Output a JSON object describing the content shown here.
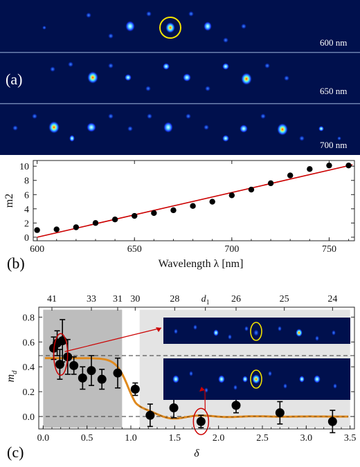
{
  "panel_a": {
    "label": "(a)",
    "stripes": [
      {
        "label": "600 nm"
      },
      {
        "label": "650 nm"
      },
      {
        "label": "700 nm"
      }
    ]
  },
  "chart_data": [
    {
      "panel_label": "(b)",
      "type": "scatter",
      "xlabel": "Wavelength λ [nm]",
      "ylabel": "m2",
      "xlim": [
        598,
        763
      ],
      "ylim": [
        -0.5,
        10.8
      ],
      "xticks": [
        600,
        650,
        700,
        750
      ],
      "yticks": [
        0,
        2,
        4,
        6,
        8,
        10
      ],
      "grid": false,
      "series": [
        {
          "x": [
            600,
            610,
            620,
            630,
            640,
            650,
            660,
            670,
            680,
            690,
            700,
            710,
            720,
            730,
            740,
            750,
            760
          ],
          "y": [
            1.0,
            1.1,
            1.4,
            2.0,
            2.5,
            3.0,
            3.4,
            3.8,
            4.4,
            5.0,
            5.9,
            6.7,
            7.6,
            8.7,
            9.6,
            10.1,
            10.1
          ]
        }
      ],
      "fit_line": {
        "x": [
          600,
          762
        ],
        "y": [
          0.0,
          10.2
        ],
        "color": "#cc0000"
      }
    },
    {
      "panel_label": "(c)",
      "type": "scatter",
      "xlabel": "δ",
      "ylabel": "m_d",
      "xlim": [
        -0.05,
        3.55
      ],
      "ylim": [
        -0.1,
        0.88
      ],
      "xticks": [
        0.0,
        0.5,
        1.0,
        1.5,
        2.0,
        2.5,
        3.0,
        3.5
      ],
      "yticks": [
        0.0,
        0.2,
        0.4,
        0.6,
        0.8
      ],
      "top_axis": {
        "ticks": [
          {
            "pos": 0.1,
            "label": "41"
          },
          {
            "pos": 0.55,
            "label": "33"
          },
          {
            "pos": 0.85,
            "label": "31"
          },
          {
            "pos": 1.05,
            "label": "30"
          },
          {
            "pos": 1.5,
            "label": "28"
          },
          {
            "pos": 1.85,
            "label": "d",
            "sub": "1"
          },
          {
            "pos": 2.2,
            "label": "26"
          },
          {
            "pos": 2.75,
            "label": "25"
          },
          {
            "pos": 3.3,
            "label": "24"
          }
        ]
      },
      "dashed_lines_y": [
        0.49,
        0.0
      ],
      "shaded_regions": [
        {
          "x": [
            0.0,
            0.9
          ],
          "y": [
            -0.09,
            0.86
          ],
          "color": "#bdbdbd"
        },
        {
          "x": [
            1.1,
            3.5
          ],
          "y": [
            -0.09,
            0.86
          ],
          "color": "#e4e4e4"
        }
      ],
      "series": [
        {
          "points": [
            {
              "x": 0.12,
              "y": 0.55,
              "err": 0.09
            },
            {
              "x": 0.16,
              "y": 0.59,
              "err": 0.1
            },
            {
              "x": 0.19,
              "y": 0.42,
              "err": 0.12
            },
            {
              "x": 0.22,
              "y": 0.61,
              "err": 0.17
            },
            {
              "x": 0.28,
              "y": 0.48,
              "err": 0.14
            },
            {
              "x": 0.35,
              "y": 0.41,
              "err": 0.07
            },
            {
              "x": 0.45,
              "y": 0.31,
              "err": 0.09
            },
            {
              "x": 0.55,
              "y": 0.37,
              "err": 0.12
            },
            {
              "x": 0.67,
              "y": 0.3,
              "err": 0.08
            },
            {
              "x": 0.85,
              "y": 0.35,
              "err": 0.12
            },
            {
              "x": 1.05,
              "y": 0.22,
              "err": 0.05
            },
            {
              "x": 1.22,
              "y": 0.01,
              "err": 0.09
            },
            {
              "x": 1.49,
              "y": 0.07,
              "err": 0.08
            },
            {
              "x": 1.8,
              "y": -0.04,
              "err": 0.05
            },
            {
              "x": 2.2,
              "y": 0.09,
              "err": 0.06
            },
            {
              "x": 2.7,
              "y": 0.03,
              "err": 0.09
            },
            {
              "x": 3.3,
              "y": -0.04,
              "err": 0.09
            }
          ]
        }
      ],
      "model_curve": {
        "color": "#e08a1e",
        "form": "plateau 0.47, drop near 0.97, damped oscillation about 0"
      },
      "annotations": [
        {
          "type": "ellipse",
          "x": 0.2,
          "y": 0.5,
          "color": "#cc0000"
        },
        {
          "type": "ellipse",
          "x": 1.8,
          "y": -0.04,
          "color": "#cc0000"
        }
      ],
      "insets": [
        {
          "refers_to": "upper ellipse",
          "circled": true
        },
        {
          "refers_to": "lower ellipse",
          "circled": true
        }
      ]
    }
  ]
}
